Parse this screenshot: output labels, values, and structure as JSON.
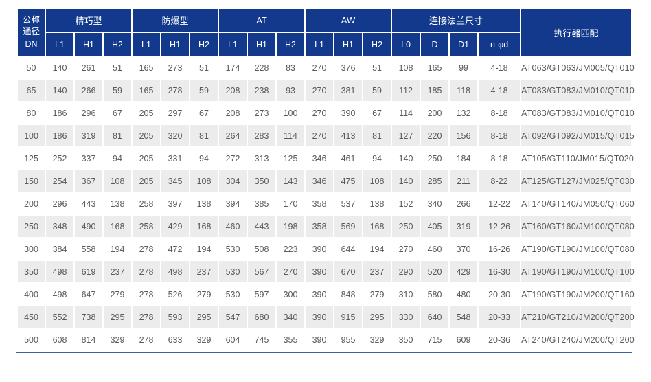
{
  "table": {
    "header": {
      "dn_label": "公称\n通径\nDN",
      "groups": [
        {
          "label": "精巧型",
          "cols": [
            "L1",
            "H1",
            "H2"
          ]
        },
        {
          "label": "防爆型",
          "cols": [
            "L1",
            "H1",
            "H2"
          ]
        },
        {
          "label": "AT",
          "cols": [
            "L1",
            "H1",
            "H2"
          ]
        },
        {
          "label": "AW",
          "cols": [
            "L1",
            "H1",
            "H2"
          ]
        },
        {
          "label": "连接法兰尺寸",
          "cols": [
            "L0",
            "D",
            "D1",
            "n-φd"
          ]
        }
      ],
      "actuator_label": "执行器匹配"
    },
    "rows": [
      {
        "dn": "50",
        "values": [
          "140",
          "261",
          "51",
          "165",
          "273",
          "51",
          "174",
          "228",
          "83",
          "270",
          "376",
          "51",
          "108",
          "165",
          "99",
          "4-18"
        ],
        "actuator": "AT063/GT063/JM005/QT010"
      },
      {
        "dn": "65",
        "values": [
          "140",
          "266",
          "59",
          "165",
          "278",
          "59",
          "208",
          "238",
          "93",
          "270",
          "381",
          "59",
          "112",
          "185",
          "118",
          "4-18"
        ],
        "actuator": "AT083/GT083/JM010/QT010"
      },
      {
        "dn": "80",
        "values": [
          "186",
          "296",
          "67",
          "205",
          "297",
          "67",
          "208",
          "273",
          "100",
          "270",
          "390",
          "67",
          "114",
          "200",
          "132",
          "8-18"
        ],
        "actuator": "AT083/GT083/JM010/QT010"
      },
      {
        "dn": "100",
        "values": [
          "186",
          "319",
          "81",
          "205",
          "320",
          "81",
          "264",
          "283",
          "114",
          "270",
          "413",
          "81",
          "127",
          "220",
          "156",
          "8-18"
        ],
        "actuator": "AT092/GT092/JM015/QT015"
      },
      {
        "dn": "125",
        "values": [
          "252",
          "337",
          "94",
          "205",
          "331",
          "94",
          "272",
          "313",
          "125",
          "346",
          "461",
          "94",
          "140",
          "250",
          "184",
          "8-18"
        ],
        "actuator": "AT105/GT110/JM015/QT020"
      },
      {
        "dn": "150",
        "values": [
          "254",
          "367",
          "108",
          "205",
          "345",
          "108",
          "304",
          "350",
          "143",
          "346",
          "475",
          "108",
          "140",
          "285",
          "211",
          "8-22"
        ],
        "actuator": "AT125/GT127/JM025/QT030"
      },
      {
        "dn": "200",
        "values": [
          "296",
          "443",
          "138",
          "258",
          "397",
          "138",
          "394",
          "385",
          "170",
          "358",
          "537",
          "138",
          "152",
          "340",
          "266",
          "12-22"
        ],
        "actuator": "AT140/GT140/JM050/QT060"
      },
      {
        "dn": "250",
        "values": [
          "348",
          "490",
          "168",
          "258",
          "429",
          "168",
          "460",
          "443",
          "198",
          "358",
          "569",
          "168",
          "250",
          "405",
          "319",
          "12-26"
        ],
        "actuator": "AT160/GT160/JM100/QT080"
      },
      {
        "dn": "300",
        "values": [
          "384",
          "558",
          "194",
          "278",
          "472",
          "194",
          "530",
          "508",
          "223",
          "390",
          "644",
          "194",
          "270",
          "460",
          "370",
          "16-26"
        ],
        "actuator": "AT190/GT190/JM100/QT080"
      },
      {
        "dn": "350",
        "values": [
          "498",
          "619",
          "237",
          "278",
          "498",
          "237",
          "530",
          "567",
          "270",
          "390",
          "670",
          "237",
          "290",
          "520",
          "429",
          "16-30"
        ],
        "actuator": "AT190/GT190/JM100/QT100"
      },
      {
        "dn": "400",
        "values": [
          "498",
          "647",
          "279",
          "278",
          "526",
          "279",
          "530",
          "597",
          "300",
          "390",
          "848",
          "279",
          "310",
          "580",
          "480",
          "20-30"
        ],
        "actuator": "AT190/GT190/JM200/QT160"
      },
      {
        "dn": "450",
        "values": [
          "552",
          "738",
          "295",
          "278",
          "593",
          "295",
          "547",
          "680",
          "340",
          "390",
          "915",
          "295",
          "330",
          "640",
          "548",
          "20-33"
        ],
        "actuator": "AT210/GT210/JM200/QT200"
      },
      {
        "dn": "500",
        "values": [
          "608",
          "814",
          "329",
          "278",
          "633",
          "329",
          "604",
          "745",
          "355",
          "390",
          "955",
          "329",
          "350",
          "715",
          "609",
          "20-36"
        ],
        "actuator": "AT240/GT240/JM200/QT200"
      }
    ]
  },
  "colors": {
    "header_bg": "#12398C",
    "header_text": "#FFFFFF",
    "stripe": "#ECECEC",
    "body_text": "#58595B",
    "bottom_line": "#3F5DAA"
  }
}
